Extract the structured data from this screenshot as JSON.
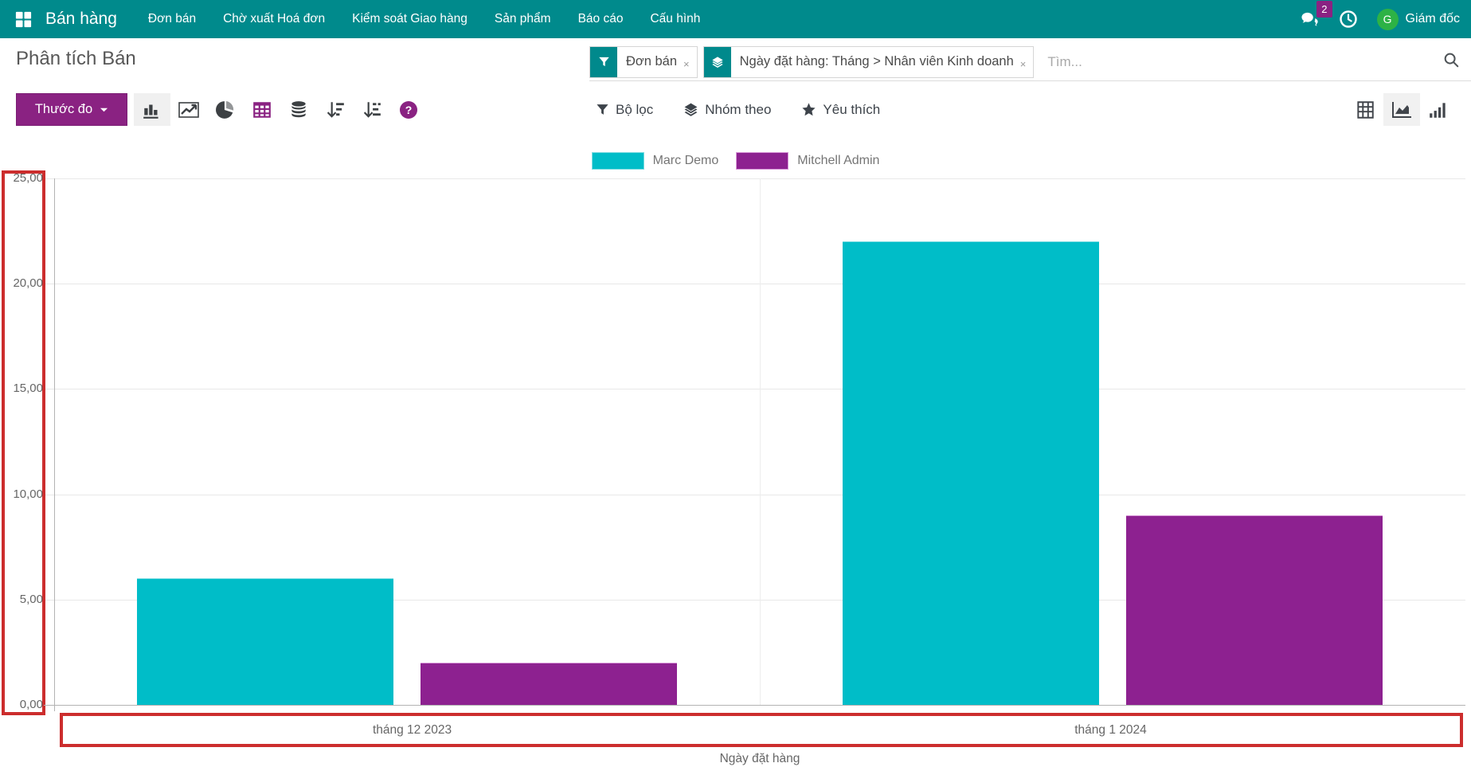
{
  "navbar": {
    "brand": "Bán hàng",
    "menu_items": [
      "Đơn bán",
      "Chờ xuất Hoá đơn",
      "Kiểm soát Giao hàng",
      "Sản phẩm",
      "Báo cáo",
      "Cấu hình"
    ],
    "message_count": "2",
    "user": {
      "initial": "G",
      "name": "Giám đốc"
    }
  },
  "control_panel": {
    "title": "Phân tích Bán",
    "search": {
      "facets": [
        {
          "icon": "filter-icon",
          "label": "Đơn bán",
          "remove": "×"
        },
        {
          "icon": "group-by-icon",
          "label": "Ngày đặt hàng: Tháng > Nhân viên Kinh doanh",
          "remove": "×"
        }
      ],
      "placeholder": "Tìm..."
    },
    "measure_button": {
      "label": "Thước đo"
    },
    "chart_type_buttons": [
      {
        "name": "bar-chart",
        "active": true
      },
      {
        "name": "line-chart",
        "active": false
      },
      {
        "name": "pie-chart",
        "active": false
      },
      {
        "name": "pivot-grid",
        "active": false
      },
      {
        "name": "stacked",
        "active": false
      },
      {
        "name": "sort-descending",
        "active": false
      },
      {
        "name": "sort-ascending",
        "active": false
      },
      {
        "name": "help",
        "active": false
      }
    ],
    "filter_buttons": [
      {
        "icon": "filter-icon",
        "label": "Bộ lọc"
      },
      {
        "icon": "group-by-icon",
        "label": "Nhóm theo"
      },
      {
        "icon": "star-icon",
        "label": "Yêu thích"
      }
    ],
    "view_switcher": [
      {
        "name": "pivot-view",
        "active": false
      },
      {
        "name": "graph-view",
        "active": true
      },
      {
        "name": "dashboard-view",
        "active": false
      }
    ]
  },
  "chart_data": {
    "type": "bar",
    "title": "",
    "categories": [
      "tháng 12 2023",
      "tháng 1 2024"
    ],
    "series": [
      {
        "name": "Marc Demo",
        "color": "#00bdc8",
        "border_color": "#7fdde2",
        "values": [
          6.0,
          22.0
        ]
      },
      {
        "name": "Mitchell Admin",
        "color": "#8d2190",
        "border_color": "#d795d7",
        "values": [
          2.0,
          9.0
        ]
      }
    ],
    "xlabel": "Ngày đặt hàng",
    "ylabel": "",
    "ylim": [
      0,
      25
    ],
    "ytick_values": [
      0,
      5,
      10,
      15,
      20,
      25
    ],
    "ytick_labels": [
      "0,00",
      "5,00",
      "10,00",
      "15,00",
      "20,00",
      "25,00"
    ],
    "grid": true,
    "legend_position": "top"
  },
  "annotations": {
    "highlight_color": "#cc2d2d",
    "highlighted_regions": [
      "y-axis-labels",
      "x-axis-labels"
    ]
  },
  "colors": {
    "navbar_bg": "#008a8c",
    "primary_purple": "#8a2282",
    "avatar_green": "#2db245",
    "series_teal": "#00bdc8",
    "series_purple": "#8d2190"
  }
}
